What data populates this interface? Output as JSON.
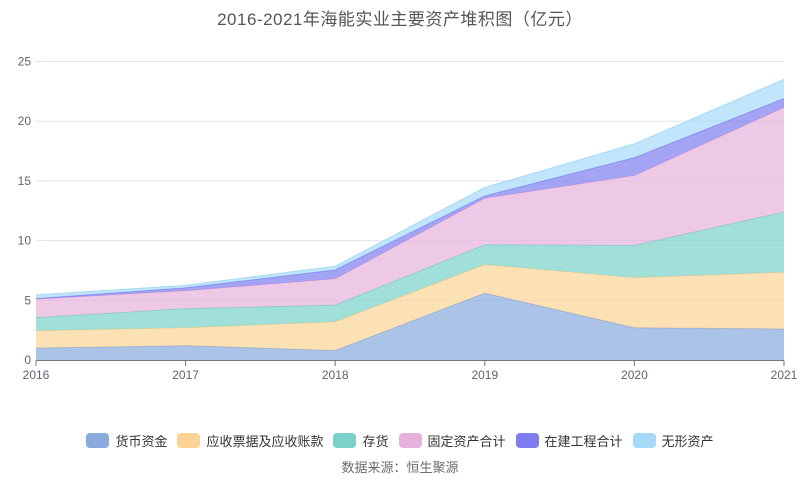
{
  "title": "2016-2021年海能实业主要资产堆积图（亿元）",
  "source": "数据来源：恒生聚源",
  "colors": {
    "grid_line": "#dfe5f1",
    "axis_line": "#777777",
    "axis_label": "#5e6470",
    "title_text": "#555555",
    "legend_text": "#333333",
    "source_text": "#6b6b6b"
  },
  "chart_data": {
    "type": "area",
    "stacked": true,
    "title": "2016-2021年海能实业主要资产堆积图（亿元）",
    "x": [
      2016,
      2017,
      2018,
      2019,
      2020,
      2021
    ],
    "series": [
      {
        "name": "货币资金",
        "color": "#88aadd",
        "values": [
          1.0,
          1.2,
          0.8,
          5.6,
          2.7,
          2.6
        ]
      },
      {
        "name": "应收票据及应收账款",
        "color": "#fbd495",
        "values": [
          1.45,
          1.5,
          2.4,
          2.4,
          4.2,
          4.75
        ]
      },
      {
        "name": "存货",
        "color": "#79d1c9",
        "values": [
          1.1,
          1.6,
          1.4,
          1.65,
          2.7,
          5.05
        ]
      },
      {
        "name": "固定资产合计",
        "color": "#e6b2db",
        "values": [
          1.55,
          1.5,
          2.2,
          3.9,
          5.85,
          8.75
        ]
      },
      {
        "name": "在建工程合计",
        "color": "#7d7df0",
        "values": [
          0.05,
          0.25,
          0.75,
          0.2,
          1.5,
          0.75
        ]
      },
      {
        "name": "无形资产",
        "color": "#a7daf8",
        "values": [
          0.3,
          0.2,
          0.3,
          0.7,
          1.15,
          1.6
        ]
      }
    ],
    "xlabel": "",
    "ylabel": "",
    "ylim": [
      0,
      25
    ],
    "yticks": [
      0,
      5,
      10,
      15,
      20,
      25
    ],
    "grid": true,
    "legend_position": "bottom",
    "area_opacity": 0.7
  }
}
